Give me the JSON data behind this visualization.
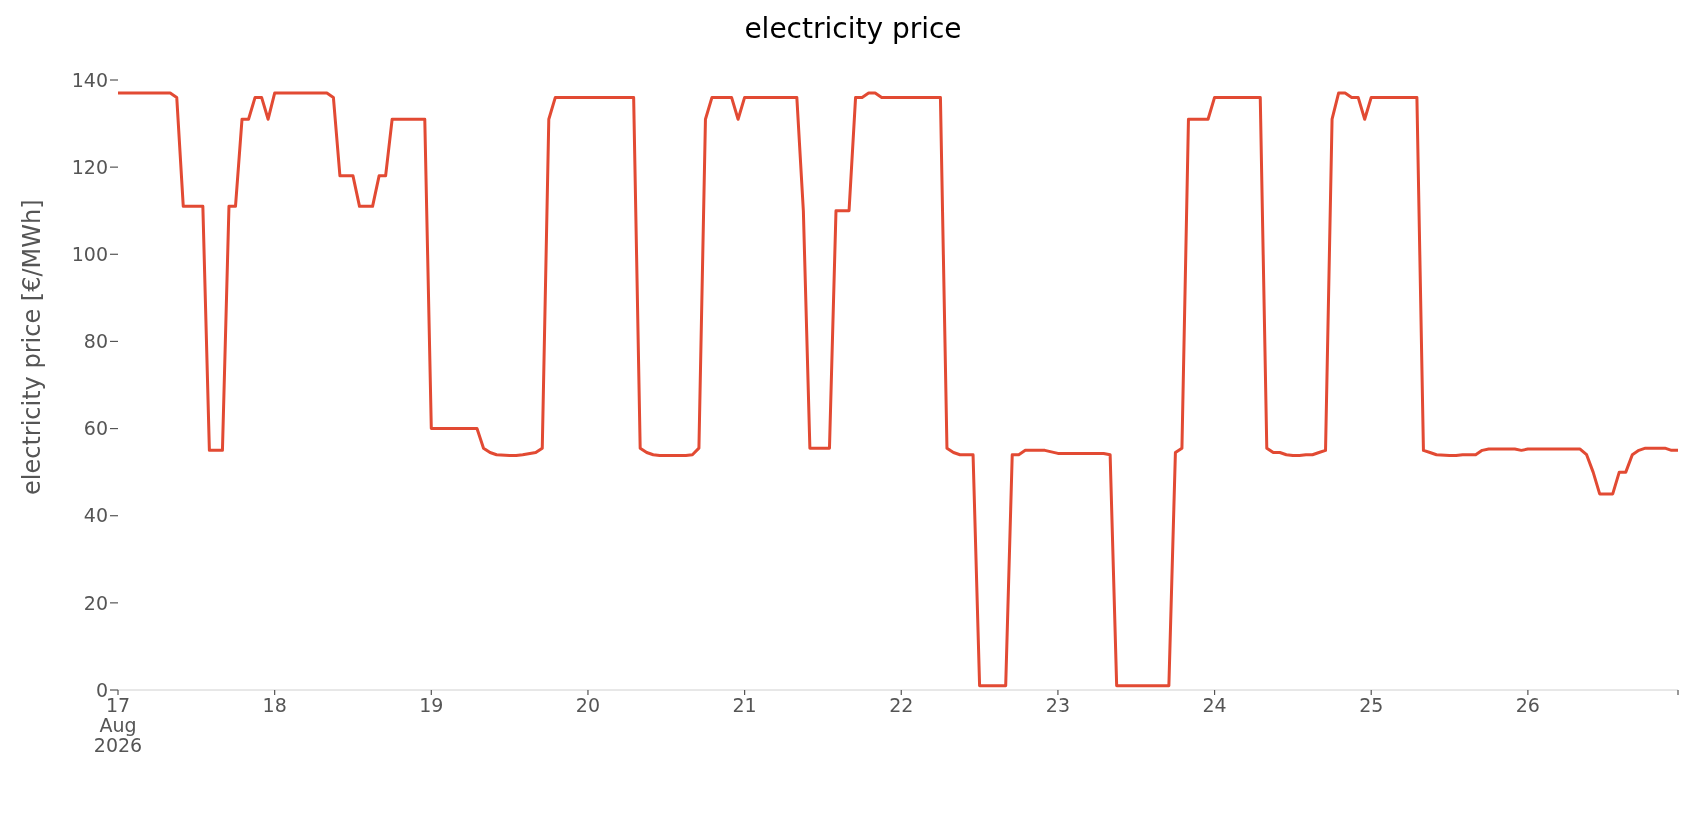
{
  "chart_data": {
    "type": "line",
    "title": "electricity price",
    "ylabel": "electricity price [€/MWh]",
    "xlim": [
      "2026-08-17T00:00",
      "2026-08-26T23:00"
    ],
    "xticks": [
      {
        "value": "2026-08-17T00:00",
        "label": "17\nAug\n2026"
      },
      {
        "value": "2026-08-18T00:00",
        "label": "18"
      },
      {
        "value": "2026-08-19T00:00",
        "label": "19"
      },
      {
        "value": "2026-08-20T00:00",
        "label": "20"
      },
      {
        "value": "2026-08-21T00:00",
        "label": "21"
      },
      {
        "value": "2026-08-22T00:00",
        "label": "22"
      },
      {
        "value": "2026-08-23T00:00",
        "label": "23"
      },
      {
        "value": "2026-08-24T00:00",
        "label": "24"
      },
      {
        "value": "2026-08-25T00:00",
        "label": "25"
      },
      {
        "value": "2026-08-26T00:00",
        "label": "26"
      },
      {
        "value": "2026-08-26T23:00",
        "label": null
      }
    ],
    "ylim": [
      0,
      140
    ],
    "yticks": [
      0,
      20,
      40,
      60,
      80,
      100,
      120,
      140
    ],
    "grid": false,
    "legend": false,
    "marker": "none",
    "line_style": "solid",
    "series": [
      {
        "color": "#e24a33",
        "x": [
          "2026-08-17T00:00",
          "2026-08-17T08:00",
          "2026-08-17T09:00",
          "2026-08-17T10:00",
          "2026-08-17T13:00",
          "2026-08-17T14:00",
          "2026-08-17T16:00",
          "2026-08-17T17:00",
          "2026-08-17T18:00",
          "2026-08-17T19:00",
          "2026-08-17T20:00",
          "2026-08-17T21:00",
          "2026-08-17T22:00",
          "2026-08-17T23:00",
          "2026-08-18T00:00",
          "2026-08-18T08:00",
          "2026-08-18T09:00",
          "2026-08-18T10:00",
          "2026-08-18T12:00",
          "2026-08-18T13:00",
          "2026-08-18T15:00",
          "2026-08-18T16:00",
          "2026-08-18T17:00",
          "2026-08-18T18:00",
          "2026-08-18T23:00",
          "2026-08-19T00:00",
          "2026-08-19T07:00",
          "2026-08-19T08:00",
          "2026-08-19T09:00",
          "2026-08-19T10:00",
          "2026-08-19T12:00",
          "2026-08-19T13:00",
          "2026-08-19T14:00",
          "2026-08-19T16:00",
          "2026-08-19T17:00",
          "2026-08-19T18:00",
          "2026-08-19T19:00",
          "2026-08-20T07:00",
          "2026-08-20T08:00",
          "2026-08-20T09:00",
          "2026-08-20T10:00",
          "2026-08-20T11:00",
          "2026-08-20T15:00",
          "2026-08-20T16:00",
          "2026-08-20T17:00",
          "2026-08-20T18:00",
          "2026-08-20T19:00",
          "2026-08-20T22:00",
          "2026-08-20T23:00",
          "2026-08-21T00:00",
          "2026-08-21T08:00",
          "2026-08-21T09:00",
          "2026-08-21T10:00",
          "2026-08-21T13:00",
          "2026-08-21T14:00",
          "2026-08-21T16:00",
          "2026-08-21T17:00",
          "2026-08-21T18:00",
          "2026-08-21T19:00",
          "2026-08-21T20:00",
          "2026-08-21T21:00",
          "2026-08-22T06:00",
          "2026-08-22T07:00",
          "2026-08-22T08:00",
          "2026-08-22T09:00",
          "2026-08-22T11:00",
          "2026-08-22T12:00",
          "2026-08-22T16:00",
          "2026-08-22T17:00",
          "2026-08-22T18:00",
          "2026-08-22T19:00",
          "2026-08-22T22:00",
          "2026-08-23T00:00",
          "2026-08-23T07:00",
          "2026-08-23T08:00",
          "2026-08-23T09:00",
          "2026-08-23T17:00",
          "2026-08-23T18:00",
          "2026-08-23T19:00",
          "2026-08-23T20:00",
          "2026-08-23T23:00",
          "2026-08-24T00:00",
          "2026-08-24T07:00",
          "2026-08-24T08:00",
          "2026-08-24T09:00",
          "2026-08-24T10:00",
          "2026-08-24T11:00",
          "2026-08-24T12:00",
          "2026-08-24T13:00",
          "2026-08-24T14:00",
          "2026-08-24T15:00",
          "2026-08-24T16:00",
          "2026-08-24T17:00",
          "2026-08-24T18:00",
          "2026-08-24T19:00",
          "2026-08-24T20:00",
          "2026-08-24T21:00",
          "2026-08-24T22:00",
          "2026-08-24T23:00",
          "2026-08-25T00:00",
          "2026-08-25T07:00",
          "2026-08-25T08:00",
          "2026-08-25T09:00",
          "2026-08-25T10:00",
          "2026-08-25T12:00",
          "2026-08-25T13:00",
          "2026-08-25T14:00",
          "2026-08-25T16:00",
          "2026-08-25T17:00",
          "2026-08-25T18:00",
          "2026-08-25T22:00",
          "2026-08-25T23:00",
          "2026-08-26T00:00",
          "2026-08-26T08:00",
          "2026-08-26T09:00",
          "2026-08-26T10:00",
          "2026-08-26T11:00",
          "2026-08-26T13:00",
          "2026-08-26T14:00",
          "2026-08-26T15:00",
          "2026-08-26T16:00",
          "2026-08-26T17:00",
          "2026-08-26T18:00",
          "2026-08-26T21:00",
          "2026-08-26T22:00",
          "2026-08-26T23:00"
        ],
        "values": [
          137,
          137,
          136,
          111,
          111,
          55,
          55,
          111,
          111,
          131,
          131,
          136,
          136,
          131,
          137,
          137,
          136,
          118,
          118,
          111,
          111,
          118,
          118,
          131,
          131,
          60,
          60,
          55.5,
          54.5,
          54,
          53.8,
          53.8,
          54,
          54.5,
          55.5,
          131,
          136,
          136,
          55.5,
          54.5,
          54,
          53.8,
          53.8,
          54,
          55.5,
          131,
          136,
          136,
          131,
          136,
          136,
          110,
          55.5,
          55.5,
          110,
          110,
          136,
          136,
          137,
          137,
          136,
          136,
          55.5,
          54.5,
          54,
          54,
          1,
          1,
          54,
          54,
          55,
          55,
          54.3,
          54.3,
          54,
          1,
          1,
          54.5,
          55.5,
          131,
          131,
          136,
          136,
          55.5,
          54.5,
          54.5,
          54,
          53.8,
          53.8,
          54,
          54,
          54.5,
          55,
          131,
          137,
          137,
          136,
          136,
          131,
          136,
          136,
          55,
          54.5,
          54,
          53.8,
          53.8,
          54,
          54,
          55,
          55.3,
          55.3,
          55,
          55.3,
          55.3,
          54,
          50,
          45,
          45,
          50,
          50,
          54,
          55,
          55.5,
          55.5,
          55,
          55
        ]
      }
    ]
  }
}
